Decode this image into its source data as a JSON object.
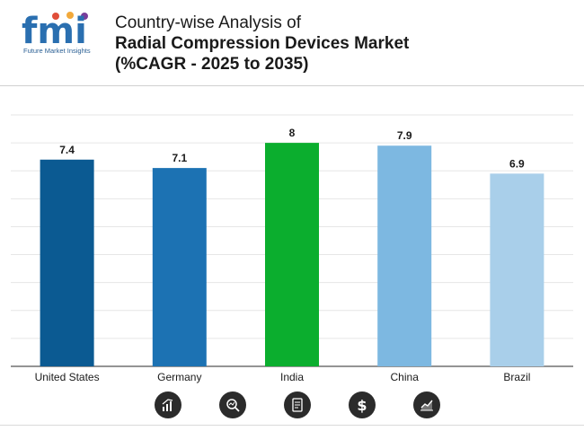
{
  "brand": {
    "logo_text": "fmi",
    "tagline": "Future Market Insights"
  },
  "header": {
    "title_line1": "Country-wise Analysis of",
    "title_line2": "Radial Compression Devices Market",
    "title_line3": "(%CAGR - 2025 to 2035)"
  },
  "chart_data": {
    "type": "bar",
    "categories": [
      "United States",
      "Germany",
      "India",
      "China",
      "Brazil"
    ],
    "values": [
      7.4,
      7.1,
      8,
      7.9,
      6.9
    ],
    "data_labels": [
      "7.4",
      "7.1",
      "8",
      "7.9",
      "6.9"
    ],
    "colors": [
      "#0b5a92",
      "#1c72b3",
      "#0bae2e",
      "#7db8e1",
      "#a9cfea"
    ],
    "ylim": [
      0,
      9
    ],
    "grid": true,
    "title": "",
    "xlabel": "",
    "ylabel": ""
  },
  "footer_icons": [
    "bar-chart-icon",
    "magnifier-chart-icon",
    "document-icon",
    "dollar-icon",
    "trend-chart-icon"
  ]
}
